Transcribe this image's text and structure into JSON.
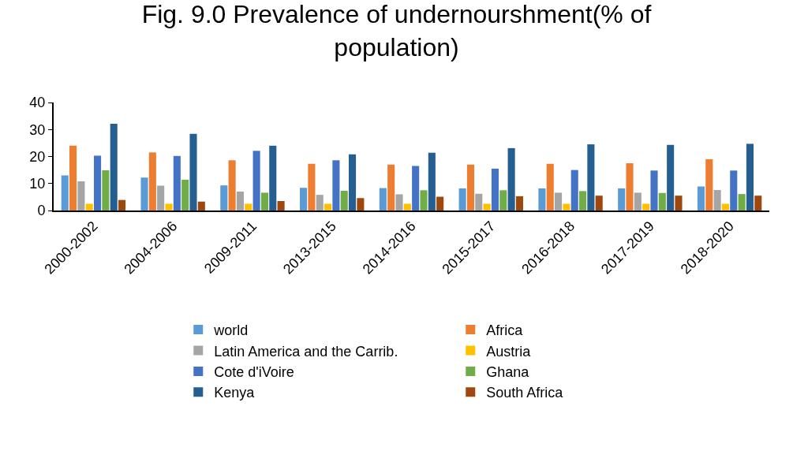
{
  "chart_data": {
    "type": "bar",
    "title": "Fig. 9.0 Prevalence of undernourshment(% of population)",
    "categories": [
      "2000-2002",
      "2004-2006",
      "2009-2011",
      "2013-2015",
      "2014-2016",
      "2015-2017",
      "2016-2018",
      "2017-2019",
      "2018-2020"
    ],
    "series": [
      {
        "name": "world",
        "color": "#5b9bd5",
        "values": [
          13,
          12.2,
          9.3,
          8.4,
          8.3,
          8.2,
          8.2,
          8.2,
          8.9
        ]
      },
      {
        "name": "Africa",
        "color": "#ed7d31",
        "values": [
          24,
          21.5,
          18.6,
          17.3,
          17,
          17,
          17.3,
          17.5,
          19
        ]
      },
      {
        "name": "Latin America and the Carrib.",
        "color": "#a5a5a5",
        "values": [
          10.8,
          9.2,
          7,
          5.8,
          6,
          6.2,
          6.6,
          6.6,
          7.6
        ]
      },
      {
        "name": "Austria",
        "color": "#ffc000",
        "values": [
          2.5,
          2.5,
          2.5,
          2.5,
          2.5,
          2.5,
          2.5,
          2.5,
          2.5
        ]
      },
      {
        "name": "Cote d'iVoire",
        "color": "#4472c4",
        "values": [
          20.3,
          20.2,
          22.1,
          18.6,
          16.5,
          15.5,
          15,
          14.8,
          14.8
        ]
      },
      {
        "name": "Ghana",
        "color": "#70ad47",
        "values": [
          14.9,
          11.4,
          6.6,
          7.3,
          7.5,
          7.5,
          7.2,
          6.5,
          6.1
        ]
      },
      {
        "name": "Kenya",
        "color": "#255e91",
        "values": [
          32.1,
          28.4,
          24,
          20.8,
          21.4,
          23.1,
          24.5,
          24.3,
          24.7
        ]
      },
      {
        "name": "South Africa",
        "color": "#9e480e",
        "values": [
          3.9,
          3.3,
          3.5,
          4.6,
          5.1,
          5.3,
          5.5,
          5.5,
          5.5
        ]
      }
    ],
    "ylim": [
      0,
      40
    ],
    "yticks": [
      0,
      10,
      20,
      30,
      40
    ],
    "legend": "bottom"
  }
}
